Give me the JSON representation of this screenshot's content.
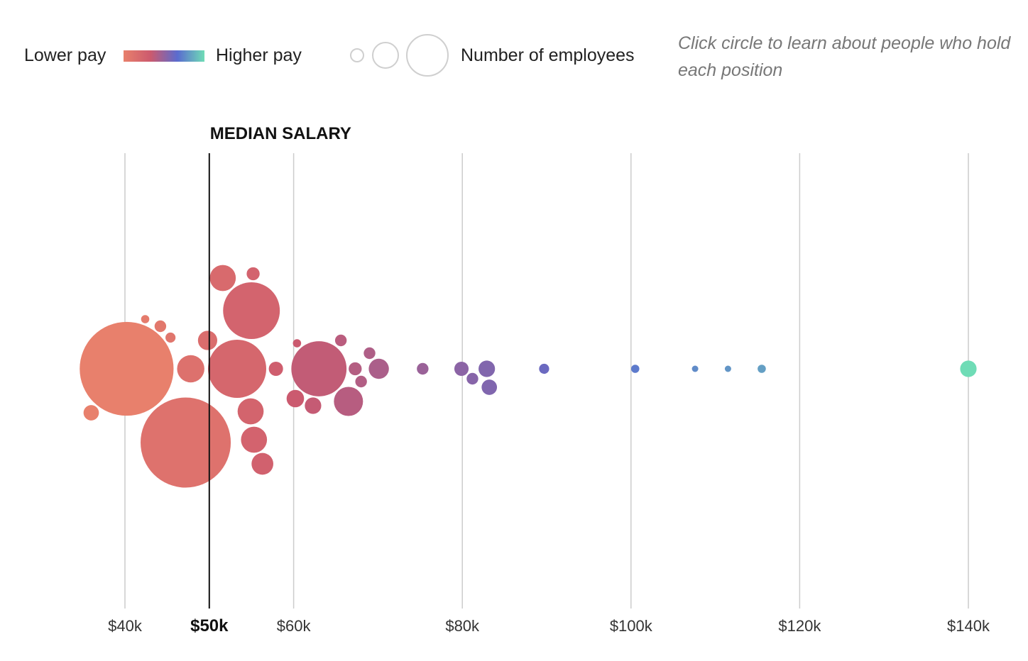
{
  "legend": {
    "lower_pay": "Lower pay",
    "higher_pay": "Higher pay",
    "size_label": "Number of employees",
    "hint": "Click circle to learn about people who hold each position",
    "gradient_colors": [
      "#e8806c",
      "#cc5a6e",
      "#5a6ccf",
      "#6fdcb6"
    ]
  },
  "chart_data": {
    "type": "scatter",
    "subtype": "beeswarm-bubble",
    "xlabel": "",
    "ylabel": "",
    "xlim": [
      35000,
      141000
    ],
    "x_ticks": [
      {
        "value": 40000,
        "label": "$40k",
        "bold": false
      },
      {
        "value": 50000,
        "label": "$50k",
        "bold": true
      },
      {
        "value": 60000,
        "label": "$60k",
        "bold": false
      },
      {
        "value": 80000,
        "label": "$80k",
        "bold": false
      },
      {
        "value": 100000,
        "label": "$100k",
        "bold": false
      },
      {
        "value": 120000,
        "label": "$120k",
        "bold": false
      },
      {
        "value": 140000,
        "label": "$140k",
        "bold": false
      }
    ],
    "gridlines": [
      40000,
      60000,
      80000,
      100000,
      120000,
      140000
    ],
    "median": {
      "value": 50000,
      "label": "MEDIAN SALARY"
    },
    "color_scale": {
      "low": 40000,
      "high": 140000,
      "stops": [
        "#e8806c",
        "#cc5a6e",
        "#5a6ccf",
        "#6fdcb6"
      ]
    },
    "points": [
      {
        "salary": 40200,
        "employees": 260
      },
      {
        "salary": 47200,
        "employees": 240
      },
      {
        "salary": 53300,
        "employees": 100
      },
      {
        "salary": 55000,
        "employees": 95
      },
      {
        "salary": 63000,
        "employees": 90
      },
      {
        "salary": 66500,
        "employees": 25
      },
      {
        "salary": 51600,
        "employees": 20
      },
      {
        "salary": 47800,
        "employees": 22
      },
      {
        "salary": 54900,
        "employees": 20
      },
      {
        "salary": 56300,
        "employees": 14
      },
      {
        "salary": 55300,
        "employees": 20
      },
      {
        "salary": 49800,
        "employees": 11
      },
      {
        "salary": 36000,
        "employees": 7
      },
      {
        "salary": 44200,
        "employees": 4
      },
      {
        "salary": 45400,
        "employees": 3
      },
      {
        "salary": 42400,
        "employees": 2
      },
      {
        "salary": 55200,
        "employees": 5
      },
      {
        "salary": 57900,
        "employees": 6
      },
      {
        "salary": 60200,
        "employees": 9
      },
      {
        "salary": 62300,
        "employees": 8
      },
      {
        "salary": 70100,
        "employees": 12
      },
      {
        "salary": 82900,
        "employees": 8
      },
      {
        "salary": 83200,
        "employees": 7
      },
      {
        "salary": 79900,
        "employees": 6
      },
      {
        "salary": 67300,
        "employees": 5
      },
      {
        "salary": 68000,
        "employees": 4
      },
      {
        "salary": 60400,
        "employees": 2
      },
      {
        "salary": 65600,
        "employees": 4
      },
      {
        "salary": 69000,
        "employees": 4
      },
      {
        "salary": 75300,
        "employees": 4
      },
      {
        "salary": 81200,
        "employees": 4
      },
      {
        "salary": 89700,
        "employees": 3
      },
      {
        "salary": 140000,
        "employees": 8
      },
      {
        "salary": 100500,
        "employees": 2
      },
      {
        "salary": 107600,
        "employees": 1
      },
      {
        "salary": 111500,
        "employees": 1
      },
      {
        "salary": 115500,
        "employees": 2
      }
    ]
  }
}
